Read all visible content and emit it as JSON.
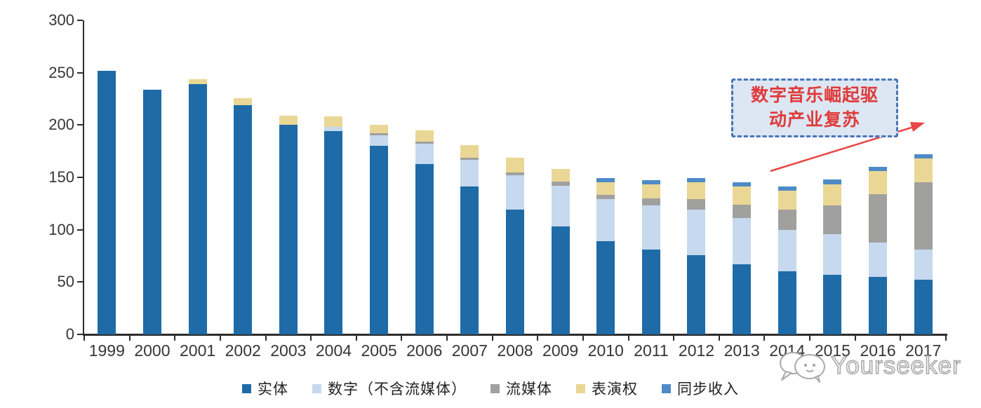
{
  "chart_data": {
    "type": "bar",
    "stacked": true,
    "title": "",
    "xlabel": "",
    "ylabel": "",
    "ylim": [
      0,
      300
    ],
    "yticks": [
      0,
      50,
      100,
      150,
      200,
      250,
      300
    ],
    "grid": false,
    "legend_position": "bottom",
    "categories": [
      "1999",
      "2000",
      "2001",
      "2002",
      "2003",
      "2004",
      "2005",
      "2006",
      "2007",
      "2008",
      "2009",
      "2010",
      "2011",
      "2012",
      "2013",
      "2014",
      "2015",
      "2016",
      "2017"
    ],
    "series": [
      {
        "name": "实体",
        "color": "#1e6ba8",
        "values": [
          252,
          234,
          239,
          219,
          200,
          194,
          180,
          163,
          141,
          119,
          103,
          89,
          81,
          76,
          67,
          60,
          57,
          55,
          52
        ]
      },
      {
        "name": "数字（不含流媒体）",
        "color": "#c6d9ee",
        "values": [
          0,
          0,
          0,
          0,
          0,
          4,
          10,
          19,
          26,
          33,
          39,
          40,
          42,
          43,
          44,
          40,
          39,
          33,
          29
        ]
      },
      {
        "name": "流媒体",
        "color": "#a0a09e",
        "values": [
          0,
          0,
          0,
          0,
          0,
          0,
          2,
          2,
          2,
          3,
          4,
          4,
          7,
          10,
          13,
          19,
          27,
          46,
          64
        ]
      },
      {
        "name": "表演权",
        "color": "#ead795",
        "values": [
          0,
          0,
          5,
          7,
          9,
          10,
          8,
          11,
          12,
          14,
          12,
          12,
          13,
          16,
          17,
          18,
          20,
          22,
          23
        ]
      },
      {
        "name": "同步收入",
        "color": "#4e8bc6",
        "values": [
          0,
          0,
          0,
          0,
          0,
          0,
          0,
          0,
          0,
          0,
          0,
          4,
          4,
          4,
          4,
          4,
          5,
          4,
          4
        ]
      }
    ]
  },
  "annotation": {
    "line1": "数字音乐崛起驱",
    "line2": "动产业复苏",
    "text_color": "#e03a3a",
    "box_fill": "#dce7f3",
    "box_border_color": "#4a74b8",
    "arrow_color": "#e94545"
  },
  "watermark": {
    "text": "Yourseeker"
  },
  "axis": {
    "color": "#2d2d2d",
    "label_color": "#363636"
  }
}
